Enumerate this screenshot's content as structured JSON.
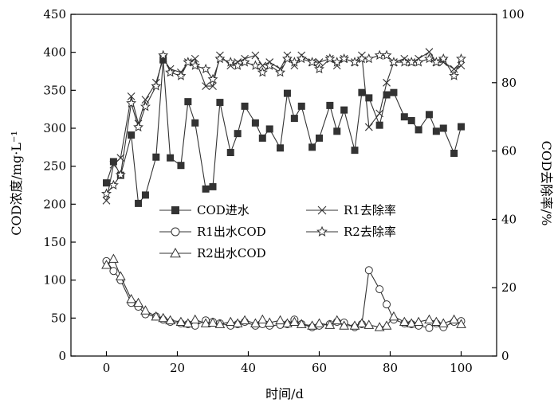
{
  "chart_data": {
    "type": "line",
    "title": "",
    "xlabel": "时间/d",
    "ylabel_left": "COD浓度/mg·L⁻¹",
    "ylabel_right": "COD去除率/%",
    "xlim": [
      -10,
      110
    ],
    "xticks": [
      0,
      20,
      40,
      60,
      80,
      100
    ],
    "ylim_left": [
      0,
      450
    ],
    "yticks_left": [
      0,
      50,
      100,
      150,
      200,
      250,
      300,
      350,
      400,
      450
    ],
    "ylim_right": [
      0,
      100
    ],
    "yticks_right": [
      0,
      20,
      40,
      60,
      80,
      100
    ],
    "grid": false,
    "legend_placement": "center-left",
    "series": [
      {
        "name": "COD进水",
        "axis": "left",
        "marker": "filled-square",
        "x": [
          0,
          2,
          4,
          7,
          9,
          11,
          14,
          16,
          18,
          21,
          23,
          25,
          28,
          30,
          32,
          35,
          37,
          39,
          42,
          44,
          46,
          49,
          51,
          53,
          55,
          58,
          60,
          63,
          65,
          67,
          70,
          72,
          74,
          77,
          79,
          81,
          84,
          86,
          88,
          91,
          93,
          95,
          98,
          100
        ],
        "y": [
          228,
          256,
          238,
          291,
          201,
          212,
          262,
          390,
          261,
          251,
          335,
          307,
          220,
          223,
          334,
          268,
          293,
          329,
          307,
          287,
          299,
          274,
          346,
          313,
          329,
          275,
          287,
          330,
          296,
          324,
          271,
          347,
          340,
          304,
          344,
          347,
          315,
          310,
          298,
          318,
          296,
          300,
          267,
          302
        ]
      },
      {
        "name": "R1出水COD",
        "axis": "left",
        "marker": "open-circle",
        "x": [
          0,
          2,
          4,
          7,
          9,
          11,
          14,
          16,
          18,
          21,
          23,
          25,
          28,
          30,
          32,
          35,
          37,
          39,
          42,
          44,
          46,
          49,
          51,
          53,
          55,
          58,
          60,
          63,
          65,
          67,
          70,
          72,
          74,
          77,
          79,
          81,
          84,
          86,
          88,
          91,
          93,
          95,
          98,
          100
        ],
        "y": [
          125,
          112,
          100,
          70,
          65,
          55,
          52,
          48,
          45,
          43,
          42,
          40,
          47,
          45,
          43,
          40,
          42,
          45,
          40,
          42,
          40,
          41,
          42,
          48,
          42,
          38,
          40,
          42,
          45,
          44,
          38,
          42,
          113,
          88,
          68,
          48,
          43,
          42,
          40,
          37,
          43,
          38,
          45,
          46
        ]
      },
      {
        "name": "R2出水COD",
        "axis": "left",
        "marker": "open-triangle",
        "x": [
          0,
          2,
          4,
          7,
          9,
          11,
          14,
          16,
          18,
          21,
          23,
          25,
          28,
          30,
          32,
          35,
          37,
          39,
          42,
          44,
          46,
          49,
          51,
          53,
          55,
          58,
          60,
          63,
          65,
          67,
          70,
          72,
          74,
          77,
          79,
          81,
          84,
          86,
          88,
          91,
          93,
          95,
          98,
          100
        ],
        "y": [
          120,
          128,
          105,
          75,
          70,
          60,
          52,
          50,
          47,
          45,
          43,
          48,
          43,
          44,
          42,
          45,
          43,
          47,
          43,
          48,
          44,
          47,
          43,
          45,
          42,
          40,
          43,
          41,
          47,
          40,
          40,
          43,
          41,
          38,
          40,
          52,
          45,
          43,
          45,
          48,
          45,
          43,
          48,
          42
        ]
      },
      {
        "name": "R1去除率",
        "axis": "right",
        "marker": "x",
        "x": [
          0,
          2,
          4,
          7,
          9,
          11,
          14,
          16,
          18,
          21,
          23,
          25,
          28,
          30,
          32,
          35,
          37,
          39,
          42,
          44,
          46,
          49,
          51,
          53,
          55,
          58,
          60,
          63,
          65,
          67,
          70,
          72,
          74,
          77,
          79,
          81,
          84,
          86,
          88,
          91,
          93,
          95,
          98,
          100
        ],
        "y": [
          45.5,
          56,
          58,
          76,
          68,
          75,
          80,
          87,
          84,
          83,
          86,
          87,
          79,
          79,
          88,
          85,
          86,
          87,
          88,
          85,
          86,
          84,
          88,
          85,
          88,
          86,
          86,
          87,
          85,
          87,
          86,
          88,
          67,
          71,
          80,
          86,
          87,
          86,
          87,
          89,
          86,
          86,
          84,
          85
        ]
      },
      {
        "name": "R2去除率",
        "axis": "right",
        "marker": "star",
        "x": [
          0,
          2,
          4,
          7,
          9,
          11,
          14,
          16,
          18,
          21,
          23,
          25,
          28,
          30,
          32,
          35,
          37,
          39,
          42,
          44,
          46,
          49,
          51,
          53,
          55,
          58,
          60,
          63,
          65,
          67,
          70,
          72,
          74,
          77,
          79,
          81,
          84,
          86,
          88,
          91,
          93,
          95,
          98,
          100
        ],
        "y": [
          47.5,
          50,
          53,
          74,
          67,
          73,
          79,
          88,
          83,
          82,
          86,
          85,
          84,
          81,
          87,
          86,
          85,
          86,
          85,
          83,
          85,
          83,
          87,
          86,
          87,
          86,
          84,
          87,
          86,
          87,
          86,
          87,
          87,
          88,
          88,
          86,
          86,
          86,
          86,
          87,
          86,
          87,
          82,
          87
        ]
      }
    ]
  }
}
